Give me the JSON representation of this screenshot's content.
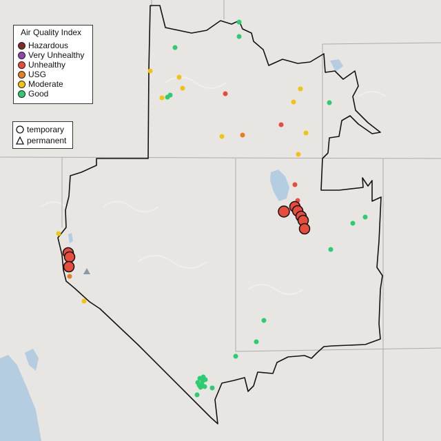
{
  "legend": {
    "title": "Air Quality Index",
    "categories": [
      {
        "label": "Hazardous",
        "color": "#7e2a26"
      },
      {
        "label": "Very Unhealthy",
        "color": "#8e44ad"
      },
      {
        "label": "Unhealthy",
        "color": "#e74c3c"
      },
      {
        "label": "USG",
        "color": "#e67e22"
      },
      {
        "label": "Moderate",
        "color": "#f1c40f"
      },
      {
        "label": "Good",
        "color": "#2ecc71"
      }
    ]
  },
  "type_legend": {
    "temporary_label": "temporary",
    "permanent_label": "permanent"
  }
}
